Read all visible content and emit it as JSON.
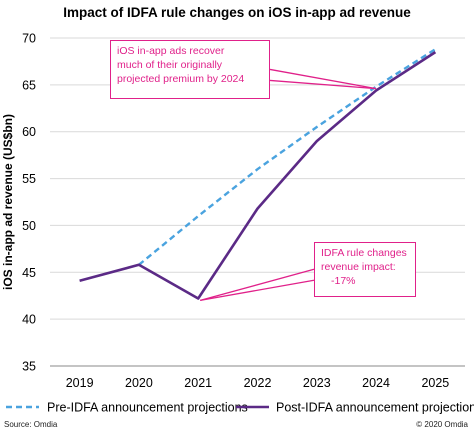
{
  "chart_data": {
    "type": "line",
    "title": "Impact of IDFA rule changes on iOS in-app ad revenue",
    "ylabel": "iOS in-app ad revenue (US$bn)",
    "xlabel": "",
    "x": [
      "2019",
      "2020",
      "2021",
      "2022",
      "2023",
      "2024",
      "2025"
    ],
    "ylim": [
      35,
      70
    ],
    "yticks": [
      "35",
      "40",
      "45",
      "50",
      "55",
      "60",
      "65",
      "70"
    ],
    "grid": true,
    "legend": "bottom",
    "series": [
      {
        "name": "Pre-IDFA announcement projections",
        "values": [
          null,
          45.8,
          51.0,
          56.0,
          60.5,
          64.8,
          68.8
        ],
        "color": "#4aa3df",
        "style": "dashed"
      },
      {
        "name": "Post-IDFA announcement projections",
        "values": [
          44.1,
          45.8,
          42.2,
          51.8,
          59.0,
          64.4,
          68.5
        ],
        "color": "#5b2a86",
        "style": "solid"
      }
    ],
    "annotations": [
      {
        "lines": [
          "iOS in-app ads recover",
          "much of their originally",
          "projected premium by 2024"
        ],
        "target_x": "2024",
        "target_y": 64.6
      },
      {
        "lines": [
          "IDFA rule changes",
          "revenue impact:",
          "-17%"
        ],
        "target_x": "2021",
        "target_y": 42.0
      }
    ],
    "annotation_color": "#e0218a"
  },
  "footer": {
    "source": "Source: Omdia",
    "copyright": "© 2020 Omdia"
  }
}
